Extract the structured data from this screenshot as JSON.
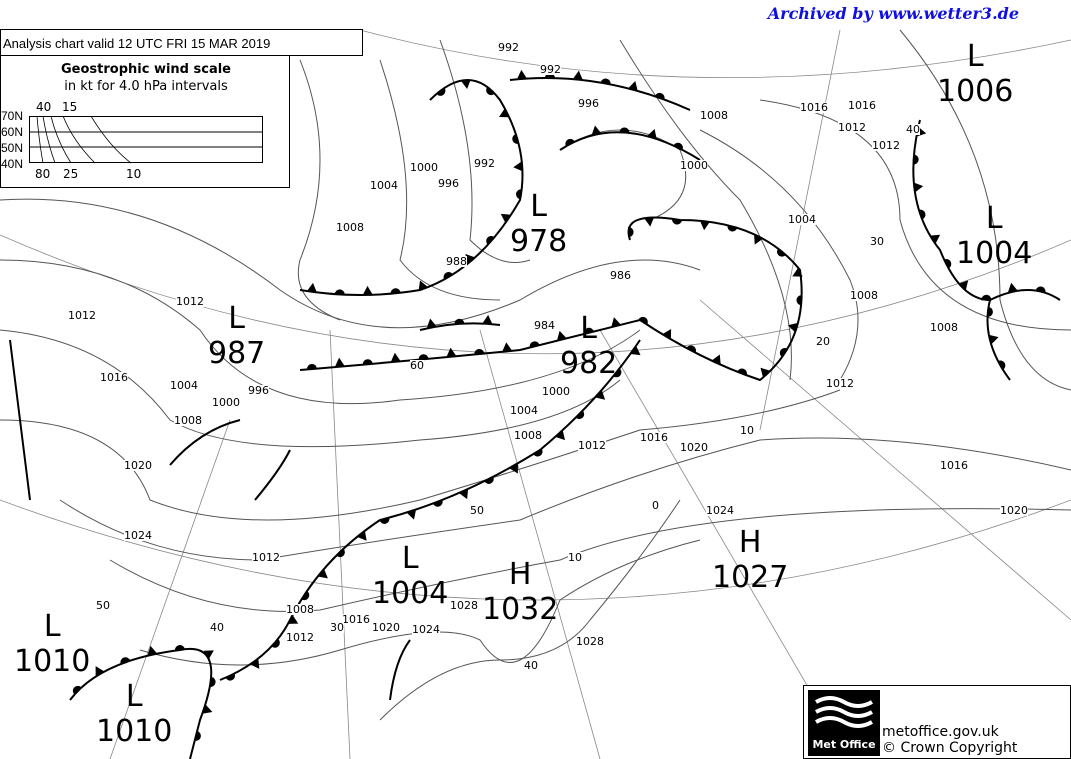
{
  "archive_banner": "Archived by www.wetter3.de",
  "chart_title": "Analysis chart  valid 12 UTC FRI 15  MAR 2019",
  "wind_scale": {
    "title": "Geostrophic wind scale",
    "subtitle": "in kt for 4.0 hPa intervals",
    "latitudes": [
      "70N",
      "60N",
      "50N",
      "40N"
    ],
    "top_ticks": [
      "40",
      "15"
    ],
    "bottom_ticks": [
      "80",
      "25",
      "10"
    ]
  },
  "pressure_centres": [
    {
      "type": "L",
      "value": "1006"
    },
    {
      "type": "L",
      "value": "1004"
    },
    {
      "type": "L",
      "value": "978"
    },
    {
      "type": "L",
      "value": "987"
    },
    {
      "type": "L",
      "value": "982"
    },
    {
      "type": "L",
      "value": "1004"
    },
    {
      "type": "H",
      "value": "1032"
    },
    {
      "type": "H",
      "value": "1027"
    },
    {
      "type": "L",
      "value": "1010"
    },
    {
      "type": "L",
      "value": "1010"
    }
  ],
  "isobar_labels": [
    "992",
    "996",
    "1008",
    "1000",
    "1016",
    "1012",
    "1004",
    "1000",
    "996",
    "992",
    "988",
    "984",
    "1008",
    "1012",
    "1012",
    "1016",
    "1004",
    "1000",
    "1008",
    "1020",
    "1024",
    "1012",
    "1008",
    "1016",
    "1012",
    "1020",
    "1024",
    "1028",
    "1028",
    "1012",
    "1016",
    "1020",
    "1004",
    "1008",
    "1000",
    "1012",
    "1016",
    "1020",
    "1024",
    "1008",
    "1012",
    "1016",
    "1008",
    "1004",
    "992",
    "996",
    "986",
    "60",
    "50",
    "40",
    "30",
    "20",
    "10",
    "10",
    "40",
    "50",
    "0",
    "40",
    "30"
  ],
  "credit": {
    "logo_text": "Met Office",
    "url": "metoffice.gov.uk",
    "copyright": "© Crown Copyright"
  }
}
